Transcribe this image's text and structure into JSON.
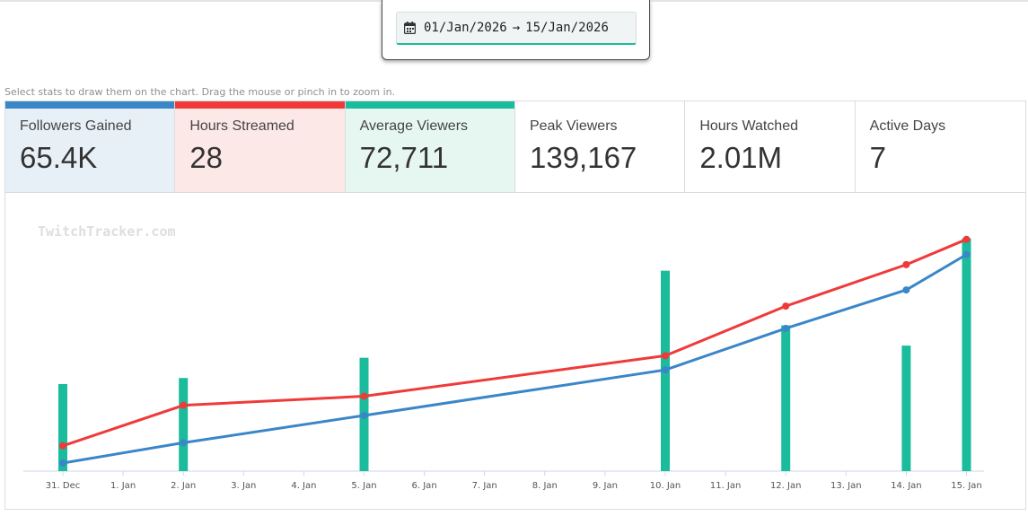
{
  "date_picker": {
    "start": "01/Jan/2026",
    "arrow": "→",
    "end": "15/Jan/2026"
  },
  "hint": "Select stats to draw them on the chart. Drag the mouse or pinch in to zoom in.",
  "stats": [
    {
      "label": "Followers Gained",
      "value": "65.4K",
      "selected": true,
      "color": "#3a86c8",
      "bg": "#e8f0f7"
    },
    {
      "label": "Hours Streamed",
      "value": "28",
      "selected": true,
      "color": "#f03a3a",
      "bg": "#fde8e8"
    },
    {
      "label": "Average Viewers",
      "value": "72,711",
      "selected": true,
      "color": "#1abc9c",
      "bg": "#e6f7f2"
    },
    {
      "label": "Peak Viewers",
      "value": "139,167",
      "selected": false
    },
    {
      "label": "Hours Watched",
      "value": "2.01M",
      "selected": false
    },
    {
      "label": "Active Days",
      "value": "7",
      "selected": false
    }
  ],
  "watermark": "TwitchTracker.com",
  "chart_data": {
    "type": "bar+line",
    "categories": [
      "31. Dec",
      "1. Jan",
      "2. Jan",
      "3. Jan",
      "4. Jan",
      "5. Jan",
      "6. Jan",
      "7. Jan",
      "8. Jan",
      "9. Jan",
      "10. Jan",
      "11. Jan",
      "12. Jan",
      "13. Jan",
      "14. Jan",
      "15. Jan"
    ],
    "grid": false,
    "legend": "none",
    "series": [
      {
        "name": "Average Viewers",
        "kind": "bar",
        "color": "#1abc9c",
        "points": [
          [
            0,
            43
          ],
          [
            2,
            46
          ],
          [
            5,
            56
          ],
          [
            10,
            99
          ],
          [
            12,
            72
          ],
          [
            14,
            62
          ],
          [
            15,
            115
          ]
        ]
      },
      {
        "name": "Hours Streamed",
        "kind": "line",
        "color": "#f03a3a",
        "points": [
          [
            0,
            12.5
          ],
          [
            2,
            32.5
          ],
          [
            5,
            37
          ],
          [
            10,
            57
          ],
          [
            12,
            81.5
          ],
          [
            14,
            102
          ],
          [
            15,
            114.5
          ]
        ]
      },
      {
        "name": "Followers Gained",
        "kind": "line",
        "color": "#3a86c8",
        "points": [
          [
            0,
            4
          ],
          [
            2,
            14
          ],
          [
            5,
            27.5
          ],
          [
            10,
            50
          ],
          [
            12,
            70.5
          ],
          [
            14,
            89.5
          ],
          [
            15,
            107
          ]
        ]
      }
    ],
    "y_scale": [
      0,
      125
    ]
  }
}
